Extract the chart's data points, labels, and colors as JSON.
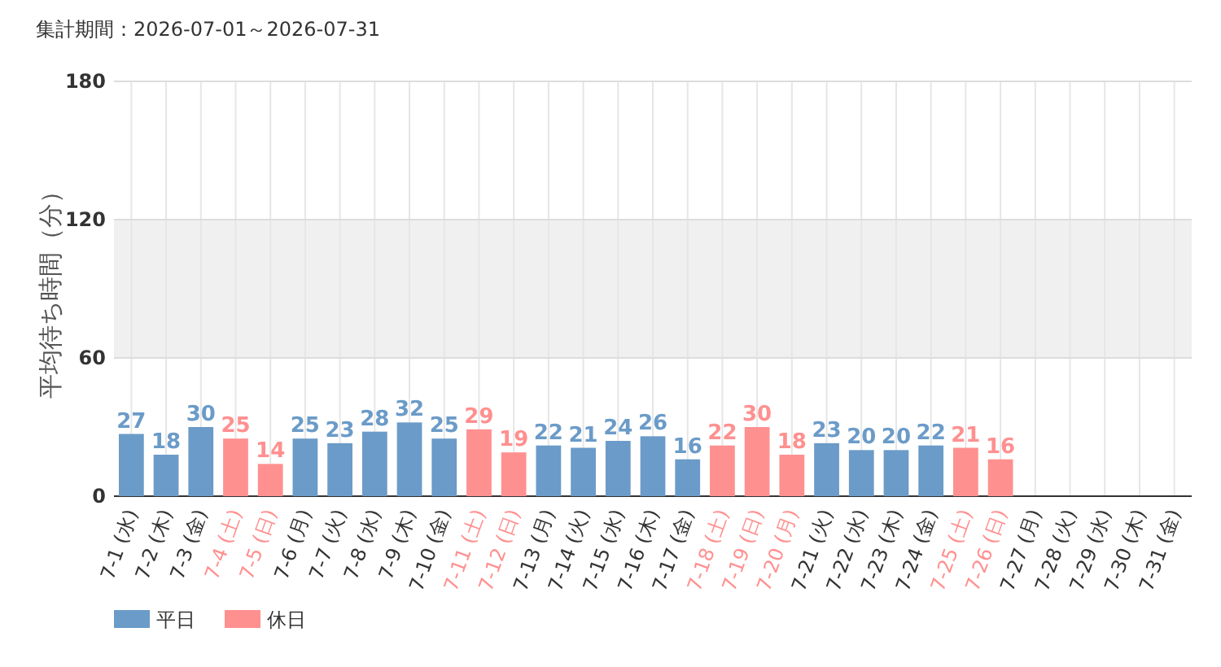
{
  "chart_data": {
    "type": "bar",
    "title": "集計期間：2026-07-01～2026-07-31",
    "ylabel": "平均待ち時間（分）",
    "categories": [
      "7-1 (水)",
      "7-2 (木)",
      "7-3 (金)",
      "7-4 (土)",
      "7-5 (日)",
      "7-6 (月)",
      "7-7 (火)",
      "7-8 (水)",
      "7-9 (木)",
      "7-10 (金)",
      "7-11 (土)",
      "7-12 (日)",
      "7-13 (月)",
      "7-14 (火)",
      "7-15 (水)",
      "7-16 (木)",
      "7-17 (金)",
      "7-18 (土)",
      "7-19 (日)",
      "7-20 (月)",
      "7-21 (火)",
      "7-22 (水)",
      "7-23 (木)",
      "7-24 (金)",
      "7-25 (土)",
      "7-26 (日)",
      "7-27 (月)",
      "7-28 (火)",
      "7-29 (水)",
      "7-30 (木)",
      "7-31 (金)"
    ],
    "series": [
      {
        "name": "平日",
        "color": "#6b9bc8",
        "values": [
          27,
          18,
          30,
          null,
          null,
          25,
          23,
          28,
          32,
          25,
          null,
          null,
          22,
          21,
          24,
          26,
          16,
          null,
          null,
          null,
          23,
          20,
          20,
          22,
          null,
          null,
          null,
          null,
          null,
          null,
          null
        ]
      },
      {
        "name": "休日",
        "color": "#ff9090",
        "values": [
          null,
          null,
          null,
          25,
          14,
          null,
          null,
          null,
          null,
          null,
          29,
          19,
          null,
          null,
          null,
          null,
          null,
          22,
          30,
          18,
          null,
          null,
          null,
          null,
          21,
          16,
          null,
          null,
          null,
          null,
          null
        ]
      }
    ],
    "ylim": [
      0,
      180
    ],
    "yticks": [
      0,
      60,
      120,
      180
    ],
    "bands": [
      {
        "axis": "y",
        "from": 60,
        "to": 120,
        "color": "#f0f0f0"
      }
    ],
    "grid": true,
    "data_labels": true,
    "legend": "bottom left"
  }
}
